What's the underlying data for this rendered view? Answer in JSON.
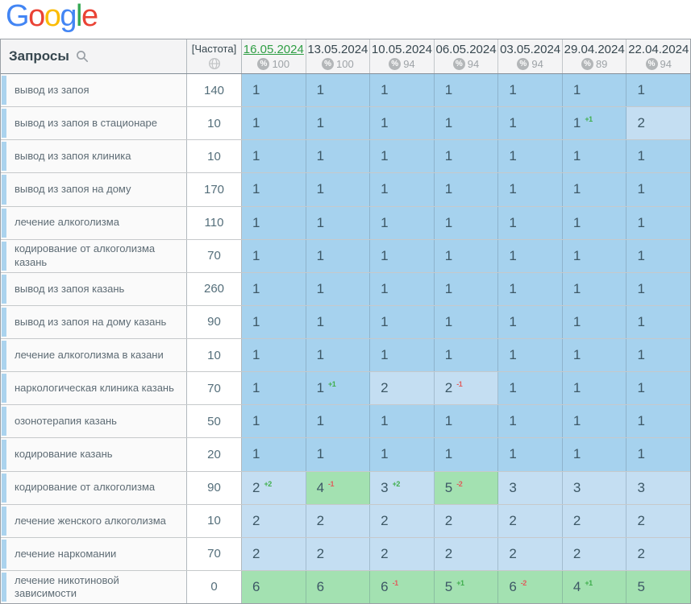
{
  "logo": {
    "text": "Google",
    "letter_colors": [
      "#4285F4",
      "#EA4335",
      "#FBBC05",
      "#4285F4",
      "#34A853",
      "#EA4335"
    ]
  },
  "header": {
    "queries_label": "Запросы",
    "frequency_label": "[Частота]",
    "dates": [
      {
        "label": "16.05.2024",
        "metric": "100",
        "selected": true
      },
      {
        "label": "13.05.2024",
        "metric": "100",
        "selected": false
      },
      {
        "label": "10.05.2024",
        "metric": "94",
        "selected": false
      },
      {
        "label": "06.05.2024",
        "metric": "94",
        "selected": false
      },
      {
        "label": "03.05.2024",
        "metric": "94",
        "selected": false
      },
      {
        "label": "29.04.2024",
        "metric": "89",
        "selected": false
      },
      {
        "label": "22.04.2024",
        "metric": "94",
        "selected": false
      }
    ]
  },
  "colors": {
    "position_1_blue": "#a6d2ee",
    "position_2_3_blue": "#c4def2",
    "position_4_10_green": "#a3e1b1",
    "delta_up_green": "#3fae4c",
    "delta_down_red": "#e05c5c",
    "selected_date_green": "#2f9e44",
    "row_stripe_blue": "#abd3ee"
  },
  "rows": [
    {
      "keyword": "вывод из запоя",
      "frequency": "140",
      "cells": [
        {
          "v": "1"
        },
        {
          "v": "1"
        },
        {
          "v": "1"
        },
        {
          "v": "1"
        },
        {
          "v": "1"
        },
        {
          "v": "1"
        },
        {
          "v": "1"
        }
      ]
    },
    {
      "keyword": "вывод из запоя в стационаре",
      "frequency": "10",
      "cells": [
        {
          "v": "1"
        },
        {
          "v": "1"
        },
        {
          "v": "1"
        },
        {
          "v": "1"
        },
        {
          "v": "1"
        },
        {
          "v": "1",
          "d": "+1"
        },
        {
          "v": "2"
        }
      ]
    },
    {
      "keyword": "вывод из запоя клиника",
      "frequency": "10",
      "cells": [
        {
          "v": "1"
        },
        {
          "v": "1"
        },
        {
          "v": "1"
        },
        {
          "v": "1"
        },
        {
          "v": "1"
        },
        {
          "v": "1"
        },
        {
          "v": "1"
        }
      ]
    },
    {
      "keyword": "вывод из запоя на дому",
      "frequency": "170",
      "cells": [
        {
          "v": "1"
        },
        {
          "v": "1"
        },
        {
          "v": "1"
        },
        {
          "v": "1"
        },
        {
          "v": "1"
        },
        {
          "v": "1"
        },
        {
          "v": "1"
        }
      ]
    },
    {
      "keyword": "лечение алкоголизма",
      "frequency": "110",
      "cells": [
        {
          "v": "1"
        },
        {
          "v": "1"
        },
        {
          "v": "1"
        },
        {
          "v": "1"
        },
        {
          "v": "1"
        },
        {
          "v": "1"
        },
        {
          "v": "1"
        }
      ]
    },
    {
      "keyword": "кодирование от алкоголизма казань",
      "frequency": "70",
      "cells": [
        {
          "v": "1"
        },
        {
          "v": "1"
        },
        {
          "v": "1"
        },
        {
          "v": "1"
        },
        {
          "v": "1"
        },
        {
          "v": "1"
        },
        {
          "v": "1"
        }
      ]
    },
    {
      "keyword": "вывод из запоя казань",
      "frequency": "260",
      "cells": [
        {
          "v": "1"
        },
        {
          "v": "1"
        },
        {
          "v": "1"
        },
        {
          "v": "1"
        },
        {
          "v": "1"
        },
        {
          "v": "1"
        },
        {
          "v": "1"
        }
      ]
    },
    {
      "keyword": "вывод из запоя на дому казань",
      "frequency": "90",
      "cells": [
        {
          "v": "1"
        },
        {
          "v": "1"
        },
        {
          "v": "1"
        },
        {
          "v": "1"
        },
        {
          "v": "1"
        },
        {
          "v": "1"
        },
        {
          "v": "1"
        }
      ]
    },
    {
      "keyword": "лечение алкоголизма в казани",
      "frequency": "10",
      "cells": [
        {
          "v": "1"
        },
        {
          "v": "1"
        },
        {
          "v": "1"
        },
        {
          "v": "1"
        },
        {
          "v": "1"
        },
        {
          "v": "1"
        },
        {
          "v": "1"
        }
      ]
    },
    {
      "keyword": "наркологическая клиника казань",
      "frequency": "70",
      "cells": [
        {
          "v": "1"
        },
        {
          "v": "1",
          "d": "+1"
        },
        {
          "v": "2"
        },
        {
          "v": "2",
          "d": "-1"
        },
        {
          "v": "1"
        },
        {
          "v": "1"
        },
        {
          "v": "1"
        }
      ]
    },
    {
      "keyword": "озонотерапия казань",
      "frequency": "50",
      "cells": [
        {
          "v": "1"
        },
        {
          "v": "1"
        },
        {
          "v": "1"
        },
        {
          "v": "1"
        },
        {
          "v": "1"
        },
        {
          "v": "1"
        },
        {
          "v": "1"
        }
      ]
    },
    {
      "keyword": "кодирование казань",
      "frequency": "20",
      "cells": [
        {
          "v": "1"
        },
        {
          "v": "1"
        },
        {
          "v": "1"
        },
        {
          "v": "1"
        },
        {
          "v": "1"
        },
        {
          "v": "1"
        },
        {
          "v": "1"
        }
      ]
    },
    {
      "keyword": "кодирование от алкоголизма",
      "frequency": "90",
      "cells": [
        {
          "v": "2",
          "d": "+2"
        },
        {
          "v": "4",
          "d": "-1"
        },
        {
          "v": "3",
          "d": "+2"
        },
        {
          "v": "5",
          "d": "-2"
        },
        {
          "v": "3"
        },
        {
          "v": "3"
        },
        {
          "v": "3"
        }
      ]
    },
    {
      "keyword": "лечение женского алкоголизма",
      "frequency": "10",
      "cells": [
        {
          "v": "2"
        },
        {
          "v": "2"
        },
        {
          "v": "2"
        },
        {
          "v": "2"
        },
        {
          "v": "2"
        },
        {
          "v": "2"
        },
        {
          "v": "2"
        }
      ]
    },
    {
      "keyword": "лечение наркомании",
      "frequency": "70",
      "cells": [
        {
          "v": "2"
        },
        {
          "v": "2"
        },
        {
          "v": "2"
        },
        {
          "v": "2"
        },
        {
          "v": "2"
        },
        {
          "v": "2"
        },
        {
          "v": "2"
        }
      ]
    },
    {
      "keyword": "лечение никотиновой зависимости",
      "frequency": "0",
      "cells": [
        {
          "v": "6"
        },
        {
          "v": "6"
        },
        {
          "v": "6",
          "d": "-1"
        },
        {
          "v": "5",
          "d": "+1"
        },
        {
          "v": "6",
          "d": "-2"
        },
        {
          "v": "4",
          "d": "+1"
        },
        {
          "v": "5"
        }
      ]
    }
  ]
}
